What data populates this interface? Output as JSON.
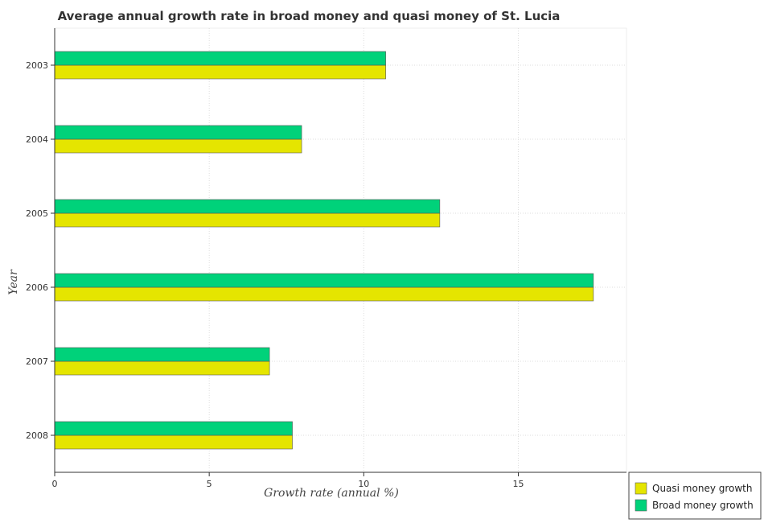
{
  "chart_data": {
    "type": "bar",
    "orientation": "horizontal",
    "title": "Average annual growth rate in broad money and quasi money of St. Lucia",
    "xlabel": "Growth rate (annual %)",
    "ylabel": "Year",
    "categories": [
      "2003",
      "2004",
      "2005",
      "2006",
      "2007",
      "2008"
    ],
    "series": [
      {
        "name": "Quasi money growth",
        "color": "#e5e500",
        "values": [
          10.71,
          7.99,
          12.46,
          17.43,
          6.95,
          7.69
        ]
      },
      {
        "name": "Broad money growth",
        "color": "#00d27a",
        "values": [
          10.71,
          7.99,
          12.46,
          17.43,
          6.95,
          7.69
        ]
      }
    ],
    "xlim": [
      0,
      18.5
    ],
    "xticks": [
      0,
      5,
      10,
      15
    ],
    "grid": true,
    "legend_position": "bottom-right"
  }
}
